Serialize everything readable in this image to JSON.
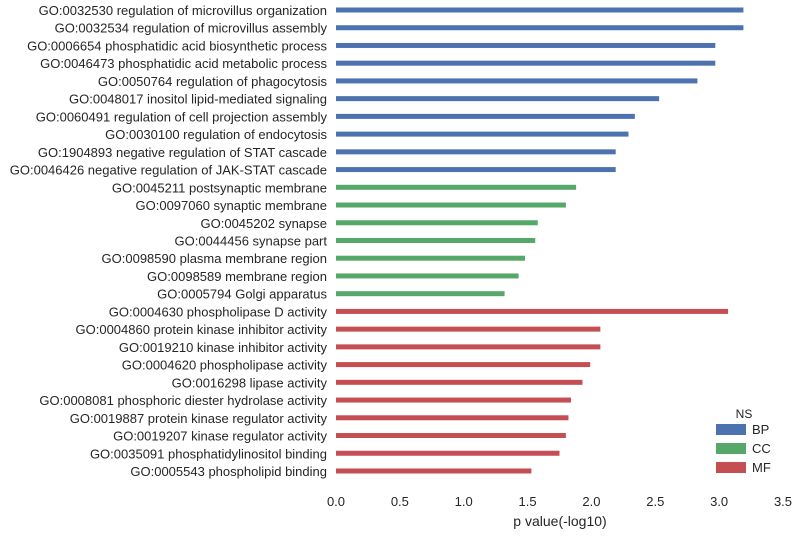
{
  "chart_data": {
    "type": "bar",
    "orientation": "horizontal",
    "xlabel": "p value(-log10)",
    "ylabel": "",
    "xlim": [
      0,
      3.5
    ],
    "x_ticks": [
      "0.0",
      "0.5",
      "1.0",
      "1.5",
      "2.0",
      "2.5",
      "3.0",
      "3.5"
    ],
    "grid": false,
    "legend": {
      "title": "NS",
      "placement": "bottom-right",
      "entries": [
        {
          "label": "BP",
          "color": "#4c72b0"
        },
        {
          "label": "CC",
          "color": "#55a868"
        },
        {
          "label": "MF",
          "color": "#c44e52"
        }
      ]
    },
    "categories": [
      "GO:0032530 regulation of microvillus organization",
      "GO:0032534 regulation of microvillus assembly",
      "GO:0006654 phosphatidic acid biosynthetic process",
      "GO:0046473 phosphatidic acid metabolic process",
      "GO:0050764 regulation of phagocytosis",
      "GO:0048017 inositol lipid-mediated signaling",
      "GO:0060491 regulation of cell projection assembly",
      "GO:0030100 regulation of endocytosis",
      "GO:1904893 negative regulation of STAT cascade",
      "GO:0046426 negative regulation of JAK-STAT cascade",
      "GO:0045211 postsynaptic membrane",
      "GO:0097060 synaptic membrane",
      "GO:0045202 synapse",
      "GO:0044456 synapse part",
      "GO:0098590 plasma membrane region",
      "GO:0098589 membrane region",
      "GO:0005794 Golgi apparatus",
      "GO:0004630 phospholipase D activity",
      "GO:0004860 protein kinase inhibitor activity",
      "GO:0019210 kinase inhibitor activity",
      "GO:0004620 phospholipase activity",
      "GO:0016298 lipase activity",
      "GO:0008081 phosphoric diester hydrolase activity",
      "GO:0019887 protein kinase regulator activity",
      "GO:0019207 kinase regulator activity",
      "GO:0035091 phosphatidylinositol binding",
      "GO:0005543 phospholipid binding"
    ],
    "series": [
      {
        "name": "BP",
        "values": [
          3.19,
          3.19,
          2.97,
          2.97,
          2.83,
          2.53,
          2.34,
          2.29,
          2.19,
          2.19,
          null,
          null,
          null,
          null,
          null,
          null,
          null,
          null,
          null,
          null,
          null,
          null,
          null,
          null,
          null,
          null,
          null
        ]
      },
      {
        "name": "CC",
        "values": [
          null,
          null,
          null,
          null,
          null,
          null,
          null,
          null,
          null,
          null,
          1.88,
          1.8,
          1.58,
          1.56,
          1.48,
          1.43,
          1.32,
          null,
          null,
          null,
          null,
          null,
          null,
          null,
          null,
          null,
          null
        ]
      },
      {
        "name": "MF",
        "values": [
          null,
          null,
          null,
          null,
          null,
          null,
          null,
          null,
          null,
          null,
          null,
          null,
          null,
          null,
          null,
          null,
          null,
          3.07,
          2.07,
          2.07,
          1.99,
          1.93,
          1.84,
          1.82,
          1.8,
          1.75,
          1.53
        ]
      }
    ]
  }
}
